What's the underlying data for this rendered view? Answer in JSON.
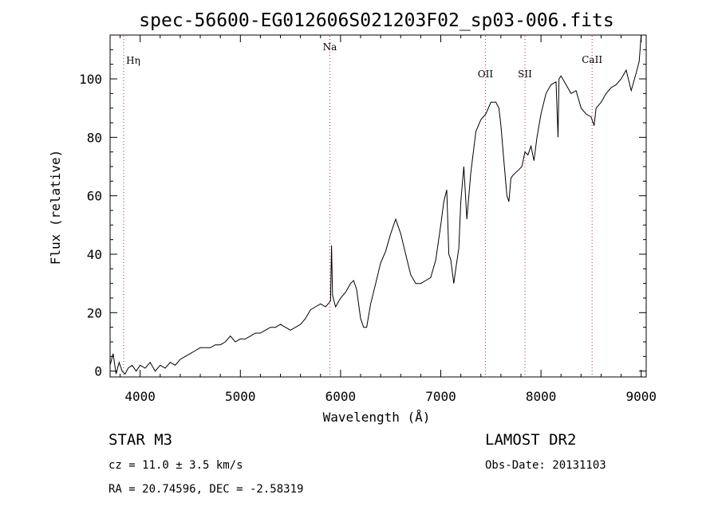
{
  "chart_data": {
    "type": "line",
    "title": "spec-56600-EG012606S021203F02_sp03-006.fits",
    "xlabel": "Wavelength (Å)",
    "ylabel": "Flux (relative)",
    "xlim": [
      3700,
      9050
    ],
    "ylim": [
      -2,
      115
    ],
    "xticks": [
      4000,
      5000,
      6000,
      7000,
      8000,
      9000
    ],
    "yticks": [
      0,
      20,
      40,
      60,
      80,
      100
    ],
    "grid": false,
    "line_color": "#000000",
    "marker_color": "#cc2020",
    "lines": [
      {
        "label": "Hη",
        "x": 3835
      },
      {
        "label": "Na",
        "x": 5893
      },
      {
        "label": "OII",
        "x": 7445
      },
      {
        "label": "SII",
        "x": 7840
      },
      {
        "label": "CaII",
        "x": 8510
      }
    ],
    "series": [
      {
        "x": [
          3700,
          3730,
          3760,
          3790,
          3820,
          3850,
          3880,
          3920,
          3960,
          4000,
          4050,
          4100,
          4150,
          4200,
          4250,
          4300,
          4350,
          4400,
          4450,
          4500,
          4550,
          4600,
          4650,
          4700,
          4750,
          4800,
          4850,
          4900,
          4950,
          5000,
          5050,
          5100,
          5150,
          5200,
          5250,
          5300,
          5350,
          5400,
          5450,
          5500,
          5550,
          5600,
          5650,
          5700,
          5750,
          5800,
          5850,
          5900,
          5910,
          5920,
          5950,
          6000,
          6050,
          6100,
          6130,
          6160,
          6200,
          6230,
          6260,
          6300,
          6350,
          6400,
          6450,
          6500,
          6550,
          6600,
          6650,
          6700,
          6750,
          6800,
          6850,
          6900,
          6950,
          7000,
          7030,
          7060,
          7080,
          7100,
          7130,
          7150,
          7180,
          7200,
          7230,
          7260,
          7300,
          7350,
          7400,
          7450,
          7500,
          7550,
          7580,
          7600,
          7630,
          7660,
          7680,
          7700,
          7720,
          7750,
          7780,
          7810,
          7840,
          7870,
          7900,
          7930,
          7960,
          8000,
          8050,
          8100,
          8150,
          8170,
          8180,
          8200,
          8250,
          8300,
          8350,
          8400,
          8450,
          8500,
          8530,
          8550,
          8600,
          8650,
          8700,
          8750,
          8800,
          8850,
          8900,
          8950,
          8980,
          9000
        ],
        "y": [
          2,
          6,
          -1,
          3,
          0,
          -1,
          1,
          2,
          0,
          2,
          1,
          3,
          0,
          2,
          1,
          3,
          2,
          4,
          5,
          6,
          7,
          8,
          8,
          8,
          9,
          9,
          10,
          12,
          10,
          11,
          11,
          12,
          13,
          13,
          14,
          15,
          15,
          16,
          15,
          14,
          15,
          16,
          18,
          21,
          22,
          23,
          22,
          24,
          43,
          26,
          22,
          25,
          27,
          30,
          31,
          28,
          18,
          15,
          15,
          23,
          30,
          37,
          41,
          47,
          52,
          47,
          40,
          33,
          30,
          30,
          31,
          32,
          38,
          50,
          58,
          62,
          40,
          38,
          30,
          35,
          42,
          58,
          70,
          52,
          68,
          82,
          86,
          88,
          92,
          92,
          90,
          84,
          72,
          60,
          58,
          66,
          67,
          68,
          69,
          70,
          75,
          74,
          77,
          72,
          80,
          88,
          95,
          98,
          99,
          80,
          100,
          101,
          98,
          95,
          96,
          90,
          88,
          87,
          84,
          90,
          92,
          95,
          97,
          98,
          100,
          103,
          96,
          102,
          106,
          115
        ]
      }
    ]
  },
  "footer": {
    "object": "STAR    M3",
    "survey": "LAMOST  DR2",
    "cz": "cz = 11.0 ± 3.5 km/s",
    "obs_date": "Obs-Date: 20131103",
    "radec": "RA =  20.74596, DEC =  -2.58319"
  }
}
